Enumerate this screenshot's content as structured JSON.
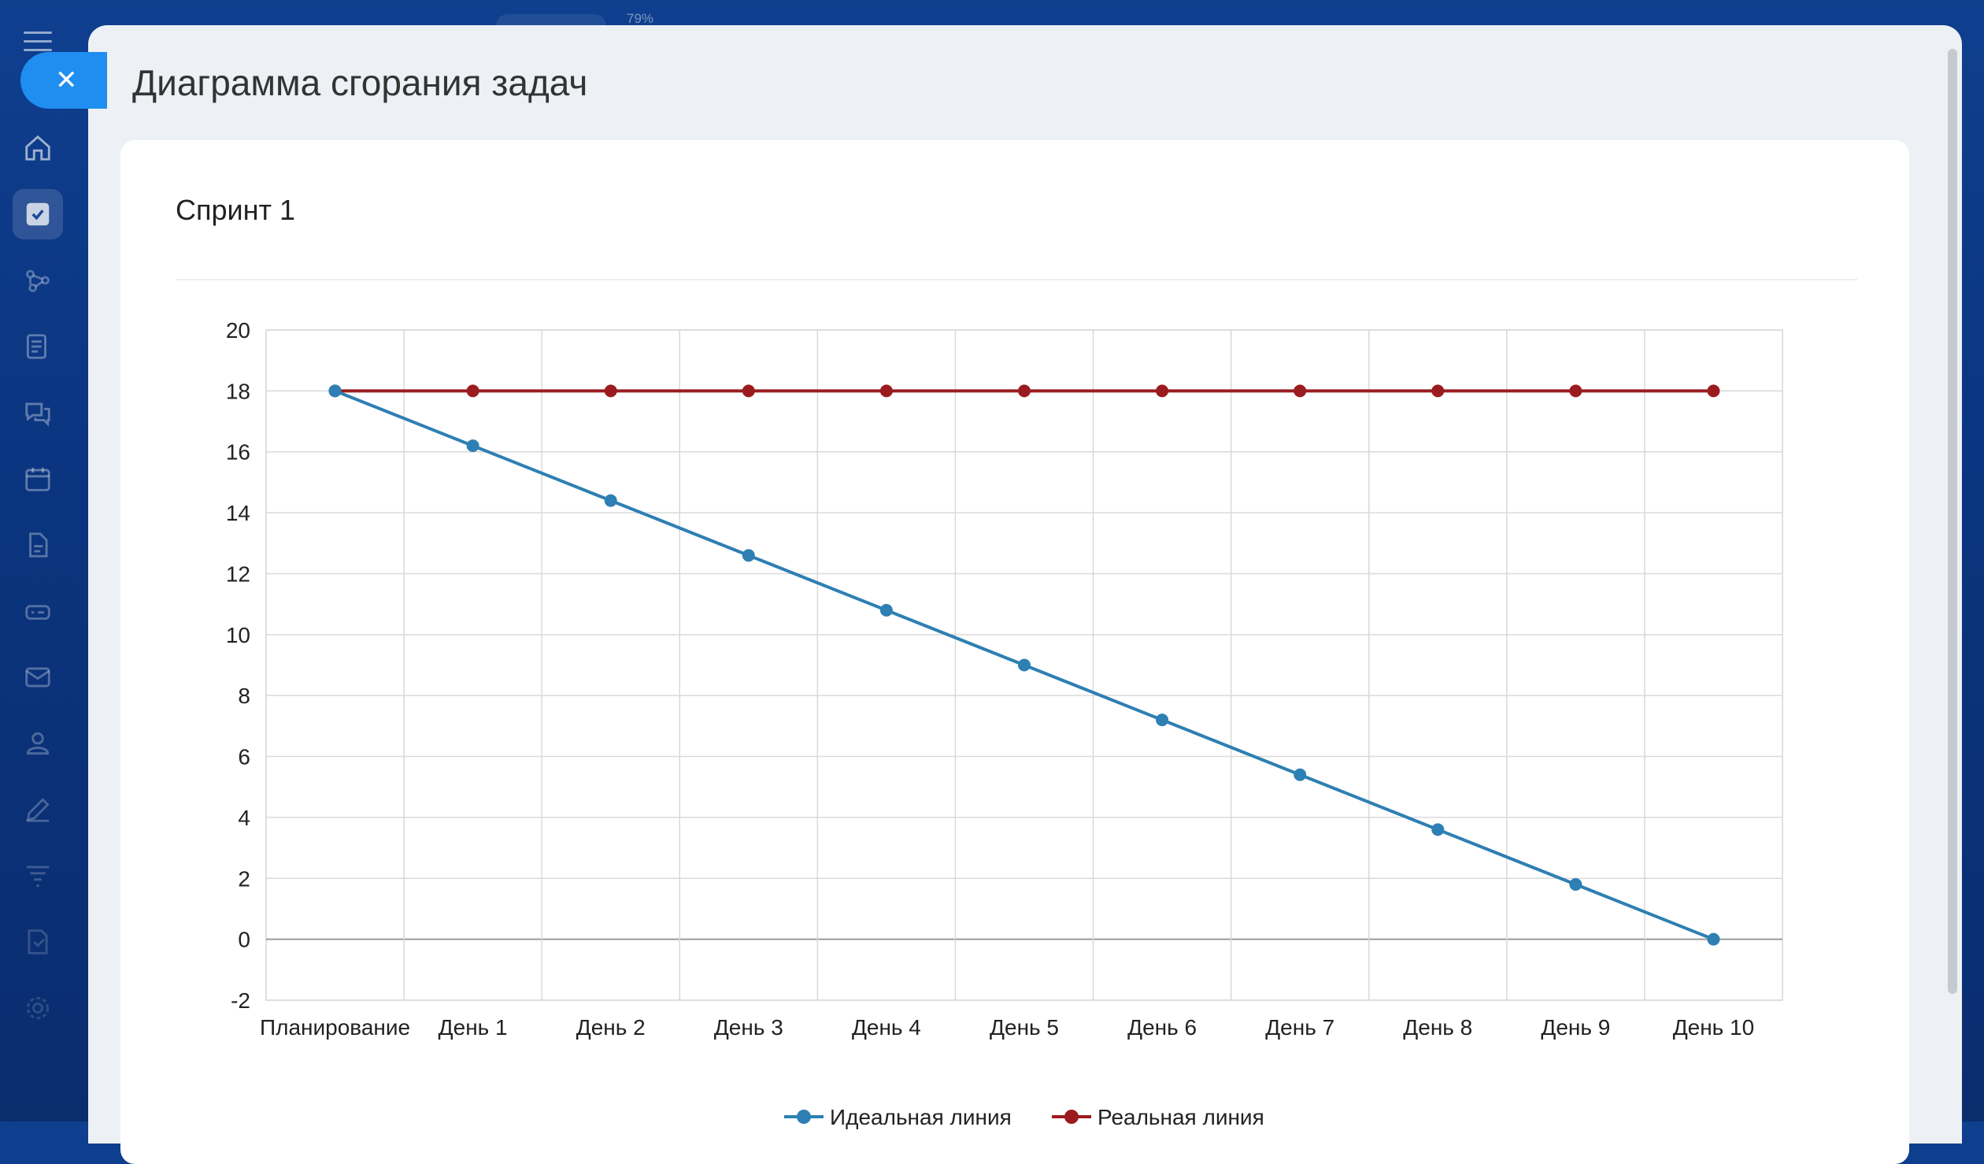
{
  "topbar": {
    "zoom": "79%"
  },
  "panel": {
    "title": "Диаграмма сгорания задач"
  },
  "card": {
    "title": "Спринт 1"
  },
  "colors": {
    "accent": "#1f8ef0",
    "ideal": "#2e7fb3",
    "actual": "#9b1c1f"
  },
  "sidebar": {
    "icons": [
      "menu-icon",
      "home-icon",
      "tasks-icon",
      "network-icon",
      "news-icon",
      "chat-icon",
      "calendar-icon",
      "document-icon",
      "drive-icon",
      "mail-icon",
      "contacts-icon",
      "edit-icon",
      "filter-icon",
      "report-icon",
      "gear-icon"
    ]
  },
  "chart_data": {
    "type": "line",
    "categories": [
      "Планирование",
      "День 1",
      "День 2",
      "День 3",
      "День 4",
      "День 5",
      "День 6",
      "День 7",
      "День 8",
      "День 9",
      "День 10"
    ],
    "series": [
      {
        "name": "Идеальная линия",
        "values": [
          18,
          16.2,
          14.4,
          12.6,
          10.8,
          9,
          7.2,
          5.4,
          3.6,
          1.8,
          0
        ]
      },
      {
        "name": "Реальная линия",
        "values": [
          18,
          18,
          18,
          18,
          18,
          18,
          18,
          18,
          18,
          18,
          18
        ]
      }
    ],
    "title": "",
    "xlabel": "",
    "ylabel": "",
    "ylim": [
      -2,
      20
    ],
    "yticks": [
      "20",
      "18",
      "16",
      "14",
      "12",
      "10",
      "8",
      "6",
      "4",
      "2",
      "0",
      "-2"
    ],
    "grid": true,
    "legend": "bottom"
  }
}
